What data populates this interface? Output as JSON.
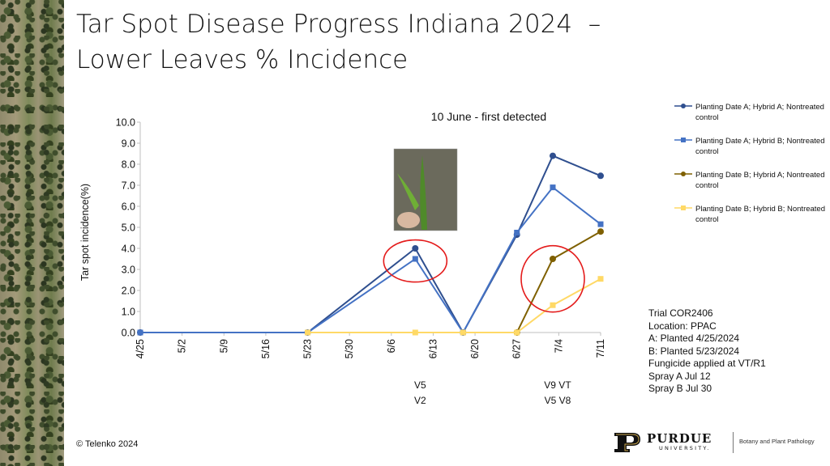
{
  "title": {
    "line1": "Tar Spot Disease Progress Indiana 2024  –",
    "line2": "Lower Leaves % Incidence"
  },
  "chart_data": {
    "type": "line",
    "ylabel": "Tar spot incidence(%)",
    "ylim": [
      0,
      10
    ],
    "yticks": [
      "0.0",
      "1.0",
      "2.0",
      "3.0",
      "4.0",
      "5.0",
      "6.0",
      "7.0",
      "8.0",
      "9.0",
      "10.0"
    ],
    "x_ticks": [
      "4/25",
      "5/2",
      "5/9",
      "5/16",
      "5/23",
      "5/30",
      "6/6",
      "6/13",
      "6/20",
      "6/27",
      "7/4",
      "7/11"
    ],
    "series": [
      {
        "name": "Planting Date A; Hybrid A; Nontreated control",
        "color": "#2f4f8f",
        "marker": "circle",
        "points": [
          [
            "4/25",
            0.0
          ],
          [
            "5/23",
            0.0
          ],
          [
            "6/10",
            4.0
          ],
          [
            "6/18",
            0.0
          ],
          [
            "6/27",
            4.65
          ],
          [
            "7/3",
            8.4
          ],
          [
            "7/11",
            7.45
          ]
        ]
      },
      {
        "name": "Planting Date A; Hybrid B; Nontreated control",
        "color": "#4472c4",
        "marker": "square",
        "points": [
          [
            "4/25",
            0.0
          ],
          [
            "5/23",
            0.0
          ],
          [
            "6/10",
            3.5
          ],
          [
            "6/18",
            0.0
          ],
          [
            "6/27",
            4.75
          ],
          [
            "7/3",
            6.9
          ],
          [
            "7/11",
            5.15
          ]
        ]
      },
      {
        "name": "Planting Date B; Hybrid A; Nontreated control",
        "color": "#7f6000",
        "marker": "circle",
        "points": [
          [
            "6/27",
            0.0
          ],
          [
            "7/3",
            3.5
          ],
          [
            "7/11",
            4.8
          ]
        ]
      },
      {
        "name": "Planting Date B; Hybrid B; Nontreated control",
        "color": "#ffd966",
        "marker": "square",
        "points": [
          [
            "5/23",
            0.0
          ],
          [
            "6/10",
            0.0
          ],
          [
            "6/18",
            0.0
          ],
          [
            "6/27",
            0.0
          ],
          [
            "7/3",
            1.3
          ],
          [
            "7/11",
            2.55
          ]
        ]
      }
    ],
    "annotations": {
      "first_detected": "10 June - first detected",
      "growth_stages": [
        {
          "at": "6/10",
          "lines": [
            "V5",
            "V2"
          ]
        },
        {
          "at": "7/3",
          "lines": [
            "V9 VT",
            "V5 V8"
          ]
        }
      ],
      "circles": [
        {
          "center": [
            "6/10",
            3.4
          ]
        },
        {
          "center": [
            "7/3",
            2.55
          ]
        }
      ]
    }
  },
  "trial": {
    "lines": [
      "Trial COR2406",
      "Location: PPAC",
      "A: Planted 4/25/2024",
      "B: Planted 5/23/2024",
      "Fungicide applied at VT/R1",
      "Spray A Jul 12",
      "Spray B Jul 30"
    ]
  },
  "footer": {
    "copyright": "© Telenko 2024",
    "logo_name": "PURDUE",
    "logo_sub": "UNIVERSITY.",
    "department": "Botany and Plant Pathology"
  },
  "colors": {
    "axis": "#bfbfbf",
    "circle": "#e41b1b"
  }
}
